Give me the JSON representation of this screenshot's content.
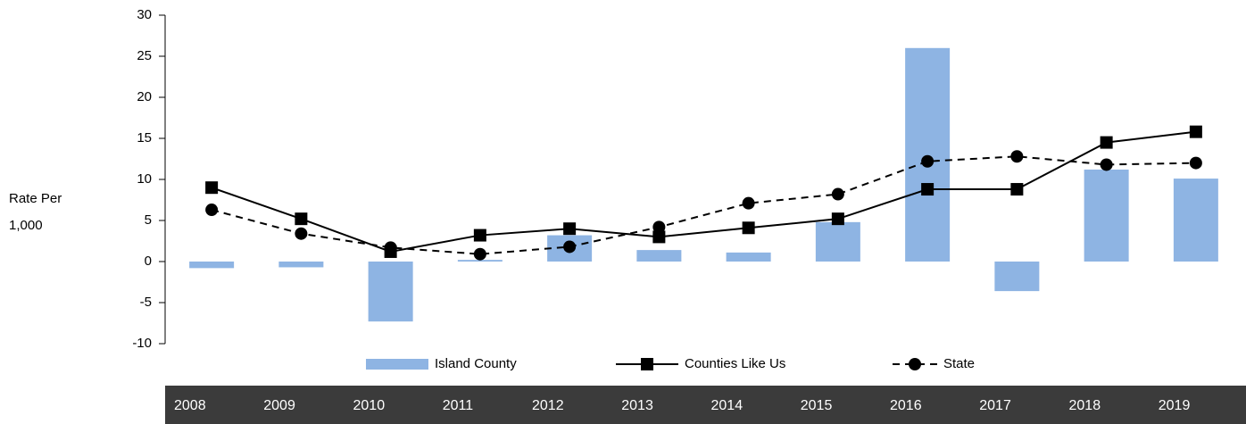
{
  "chart_data": {
    "type": "bar-line",
    "y_label": [
      "Rate Per",
      "1,000"
    ],
    "categories": [
      "2008",
      "2009",
      "2010",
      "2011",
      "2012",
      "2013",
      "2014",
      "2015",
      "2016",
      "2017",
      "2018",
      "2019"
    ],
    "series": [
      {
        "name": "Island County",
        "type": "bar",
        "color": "#8eb4e3",
        "values": [
          -0.8,
          -0.7,
          -7.3,
          0.2,
          3.2,
          1.4,
          1.1,
          4.8,
          26,
          -3.6,
          11.2,
          10.1
        ]
      },
      {
        "name": "Counties Like Us",
        "type": "line",
        "color": "#000000",
        "marker": "square",
        "dashed": false,
        "values": [
          9.0,
          5.2,
          1.2,
          3.2,
          4.0,
          3.0,
          4.1,
          5.2,
          8.8,
          8.8,
          14.5,
          15.8
        ]
      },
      {
        "name": "State",
        "type": "line",
        "color": "#000000",
        "marker": "circle",
        "dashed": true,
        "values": [
          6.3,
          3.4,
          1.7,
          0.9,
          1.8,
          4.2,
          7.1,
          8.2,
          12.2,
          12.8,
          11.8,
          12.0
        ]
      }
    ],
    "ylim": [
      -10,
      30
    ],
    "yticks": [
      -10,
      -5,
      0,
      5,
      10,
      15,
      20,
      25,
      30
    ],
    "grid": false,
    "legend": "bottom"
  }
}
